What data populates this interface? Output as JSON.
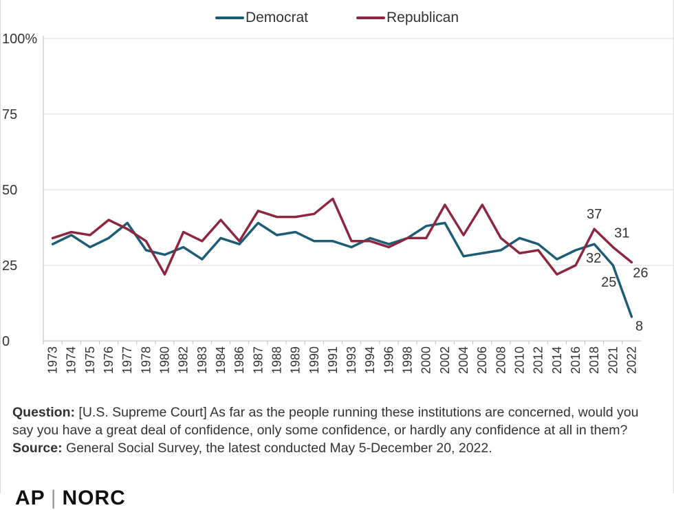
{
  "legend": [
    {
      "name": "Democrat",
      "color": "#1d5c74"
    },
    {
      "name": "Republican",
      "color": "#8b2741"
    }
  ],
  "chart_data": {
    "type": "line",
    "categories": [
      "1973",
      "1974",
      "1975",
      "1976",
      "1977",
      "1978",
      "1980",
      "1982",
      "1983",
      "1984",
      "1986",
      "1987",
      "1988",
      "1989",
      "1990",
      "1991",
      "1993",
      "1994",
      "1996",
      "1998",
      "2000",
      "2002",
      "2004",
      "2006",
      "2008",
      "2010",
      "2012",
      "2014",
      "2016",
      "2018",
      "2021",
      "2022"
    ],
    "series": [
      {
        "name": "Democrat",
        "color": "#1d5c74",
        "values": [
          32,
          35,
          31,
          34,
          39,
          30,
          28.5,
          31,
          27,
          34,
          32,
          39,
          35,
          36,
          33,
          33,
          31,
          34,
          32,
          34,
          38,
          39,
          28,
          29,
          30,
          34,
          32,
          27,
          30,
          32,
          25,
          8
        ]
      },
      {
        "name": "Republican",
        "color": "#8b2741",
        "values": [
          34,
          36,
          35,
          40,
          37,
          33,
          22,
          36,
          33,
          40,
          33,
          43,
          41,
          41,
          42,
          47,
          33,
          33,
          31,
          34,
          34,
          45,
          35,
          45,
          34,
          29,
          30,
          22,
          25,
          37,
          31,
          26
        ]
      }
    ],
    "yticks": [
      "0",
      "25",
      "50",
      "75",
      "100%"
    ],
    "ylim": [
      0,
      100
    ],
    "grid": true,
    "legend_position": "top-center",
    "data_labels": [
      {
        "series": "Republican",
        "category": "2018",
        "text": "37"
      },
      {
        "series": "Republican",
        "category": "2021",
        "text": "31"
      },
      {
        "series": "Republican",
        "category": "2022",
        "text": "26"
      },
      {
        "series": "Democrat",
        "category": "2018",
        "text": "32"
      },
      {
        "series": "Democrat",
        "category": "2021",
        "text": "25"
      },
      {
        "series": "Democrat",
        "category": "2022",
        "text": "8"
      }
    ]
  },
  "notes": {
    "question_label": "Question:",
    "question_text": " [U.S. Supreme Court] As far as the people running these institutions are concerned, would you say you have a great deal of confidence, only some confidence, or hardly any confidence at all in them?",
    "source_label": "Source:",
    "source_text": " General Social Survey, the latest conducted May 5-December 20, 2022."
  },
  "logo": {
    "left": "AP",
    "right": "NORC"
  }
}
